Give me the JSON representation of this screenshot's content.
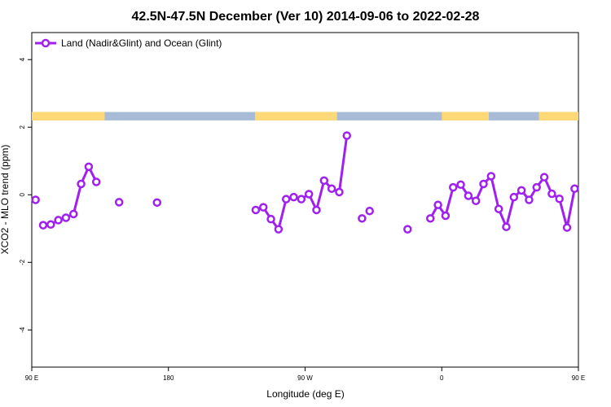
{
  "chart_data": {
    "type": "line",
    "title": "42.5N-47.5N December (Ver 10)   2014-09-06 to 2022-02-28",
    "xlabel": "Longitude (deg E)",
    "ylabel": "XCO2 - MLO trend (ppm)",
    "xlim": [
      90,
      450
    ],
    "ylim": [
      -5.1,
      4.8
    ],
    "x_ticks": [
      {
        "value": 90,
        "label": "90 E"
      },
      {
        "value": 180,
        "label": "180"
      },
      {
        "value": 270,
        "label": "90 W"
      },
      {
        "value": 360,
        "label": "0"
      },
      {
        "value": 450,
        "label": "90 E"
      }
    ],
    "y_ticks": [
      {
        "value": 4,
        "label": "4"
      },
      {
        "value": 2,
        "label": "2"
      },
      {
        "value": 0,
        "label": "0"
      },
      {
        "value": -2,
        "label": "-2"
      },
      {
        "value": -4,
        "label": "-4"
      }
    ],
    "grid": false,
    "legend": {
      "position": "top-left"
    },
    "series_color": "#a020f0",
    "land_color": "#fdd876",
    "ocean_color": "#a8bcd8",
    "land_ocean_band": {
      "y_range": [
        2.2,
        2.45
      ],
      "land_segments": [
        [
          90,
          138
        ],
        [
          237,
          291
        ],
        [
          360,
          391
        ],
        [
          424,
          497
        ],
        [
          560,
          566
        ]
      ]
    },
    "series": [
      {
        "name": "Land (Nadir&Glint) and Ocean (Glint)",
        "segments": [
          {
            "x": [
              92.5
            ],
            "y": [
              -0.15
            ]
          },
          {
            "x": [
              97.5,
              102.5,
              107.5,
              112.5,
              117.5,
              122.5,
              127.5,
              132.5
            ],
            "y": [
              -0.9,
              -0.88,
              -0.75,
              -0.68,
              -0.57,
              0.32,
              0.83,
              0.38
            ]
          },
          {
            "x": [
              147.5
            ],
            "y": [
              -0.22
            ]
          },
          {
            "x": [
              172.5
            ],
            "y": [
              -0.23
            ]
          },
          {
            "x": [
              237.5,
              242.5,
              247.5,
              252.5,
              257.5,
              262.5,
              267.5,
              272.5,
              277.5,
              282.5,
              287.5,
              292.5,
              297.5
            ],
            "y": [
              -0.45,
              -0.37,
              -0.72,
              -1.02,
              -0.13,
              -0.07,
              -0.13,
              0.02,
              -0.45,
              0.42,
              0.18,
              0.08,
              1.75
            ]
          },
          {
            "x": [
              307.5
            ],
            "y": [
              -0.7
            ]
          },
          {
            "x": [
              312.5
            ],
            "y": [
              -0.48
            ]
          },
          {
            "x": [
              337.5
            ],
            "y": [
              -1.02
            ]
          },
          {
            "x": [
              352.5,
              357.5,
              362.5,
              367.5,
              372.5,
              377.5,
              382.5,
              387.5,
              392.5,
              397.5,
              402.5,
              407.5,
              412.5,
              417.5,
              422.5,
              427.5,
              432.5,
              437.5,
              442.5,
              447.5,
              452.5,
              457.5,
              462.5,
              467.5,
              472.5,
              477.5,
              482.5,
              487.5,
              492.5
            ],
            "y": [
              -0.7,
              -0.3,
              -0.62,
              0.22,
              0.3,
              -0.03,
              -0.18,
              0.32,
              0.55,
              -0.42,
              -0.95,
              -0.07,
              0.13,
              -0.15,
              0.22,
              0.52,
              0.03,
              -0.12,
              -0.97,
              0.18,
              -0.17,
              -0.9,
              -0.88,
              -0.75,
              -0.68,
              -0.57,
              0.32,
              0.83,
              0.38
            ]
          },
          {
            "x": [
              502.5
            ],
            "y": [
              -0.22
            ]
          },
          {
            "x": [
              527.5
            ],
            "y": [
              -0.23
            ]
          }
        ]
      }
    ]
  }
}
